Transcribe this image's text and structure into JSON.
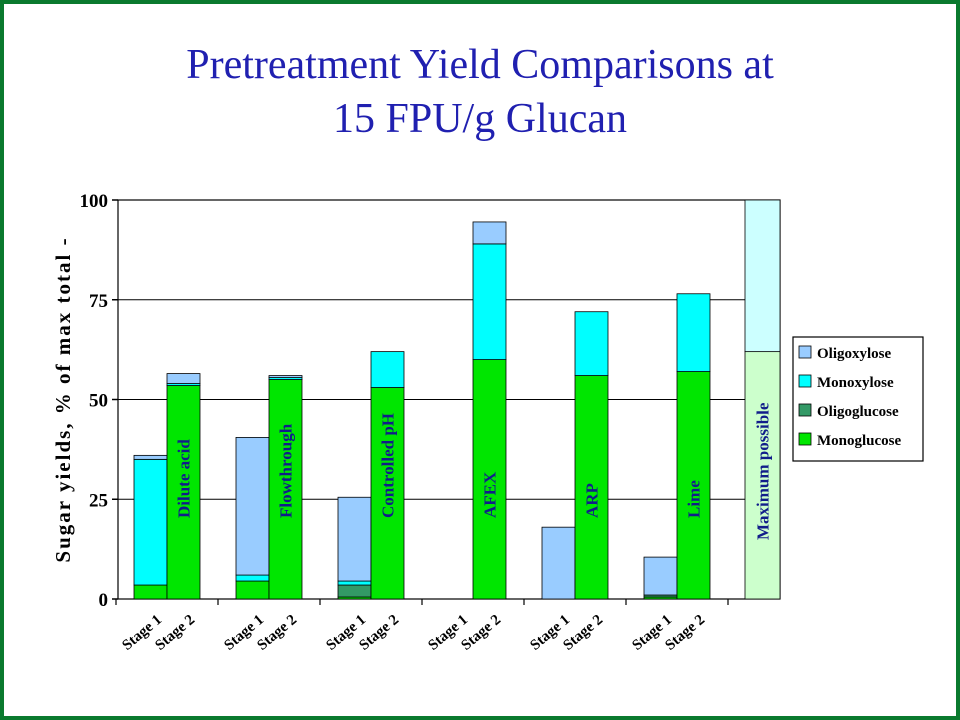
{
  "title_line1": "Pretreatment Yield Comparisons at",
  "title_line2": "15 FPU/g Glucan",
  "chart_data": {
    "type": "bar",
    "stacked": true,
    "title": "Pretreatment Yield Comparisons at 15 FPU/g Glucan",
    "ylabel": "Sugar yields, % of max total -",
    "ylim": [
      0,
      100
    ],
    "yticks": [
      "0",
      "25",
      "50",
      "75",
      "100"
    ],
    "grid": true,
    "legend_position": "right",
    "series_colors": {
      "Monoglucose": "#00e600",
      "Oligoglucose": "#339966",
      "Monoxylose": "#00ffff",
      "Oligoxylose": "#99ccff"
    },
    "legend": [
      "Oligoxylose",
      "Monoxylose",
      "Oligoglucose",
      "Monoglucose"
    ],
    "groups": [
      {
        "label": "Dilute acid",
        "bars": [
          {
            "tick": "Stage 1",
            "Monoglucose": 3.5,
            "Oligoglucose": 0,
            "Monoxylose": 31.5,
            "Oligoxylose": 1
          },
          {
            "tick": "Stage 2",
            "Monoglucose": 53.5,
            "Oligoglucose": 0,
            "Monoxylose": 0.5,
            "Oligoxylose": 2.5
          }
        ]
      },
      {
        "label": "Flowthrough",
        "bars": [
          {
            "tick": "Stage 1",
            "Monoglucose": 4.5,
            "Oligoglucose": 0,
            "Monoxylose": 1.5,
            "Oligoxylose": 34.5
          },
          {
            "tick": "Stage 2",
            "Monoglucose": 55,
            "Oligoglucose": 0,
            "Monoxylose": 0.5,
            "Oligoxylose": 0.5
          }
        ]
      },
      {
        "label": "Controlled pH",
        "bars": [
          {
            "tick": "Stage 1",
            "Monoglucose": 0.5,
            "Oligoglucose": 3,
            "Monoxylose": 1,
            "Oligoxylose": 21
          },
          {
            "tick": "Stage 2",
            "Monoglucose": 53,
            "Oligoglucose": 0,
            "Monoxylose": 9,
            "Oligoxylose": 0
          }
        ]
      },
      {
        "label": "AFEX",
        "bars": [
          {
            "tick": "Stage 1",
            "Monoglucose": 0,
            "Oligoglucose": 0,
            "Monoxylose": 0,
            "Oligoxylose": 0
          },
          {
            "tick": "Stage 2",
            "Monoglucose": 60,
            "Oligoglucose": 0,
            "Monoxylose": 29,
            "Oligoxylose": 5.5
          }
        ]
      },
      {
        "label": "ARP",
        "bars": [
          {
            "tick": "Stage 1",
            "Monoglucose": 0,
            "Oligoglucose": 0,
            "Monoxylose": 0,
            "Oligoxylose": 18
          },
          {
            "tick": "Stage 2",
            "Monoglucose": 56,
            "Oligoglucose": 0,
            "Monoxylose": 16,
            "Oligoxylose": 0
          }
        ]
      },
      {
        "label": "Lime",
        "bars": [
          {
            "tick": "Stage 1",
            "Monoglucose": 0.5,
            "Oligoglucose": 0.5,
            "Monoxylose": 0,
            "Oligoxylose": 9.5
          },
          {
            "tick": "Stage 2",
            "Monoglucose": 57,
            "Oligoglucose": 0,
            "Monoxylose": 19.5,
            "Oligoxylose": 0
          }
        ]
      }
    ],
    "maximum": {
      "label": "Maximum possible",
      "glucose": 62,
      "xylose": 38,
      "glucose_color": "#ccffcc",
      "xylose_color": "#ccffff"
    }
  }
}
